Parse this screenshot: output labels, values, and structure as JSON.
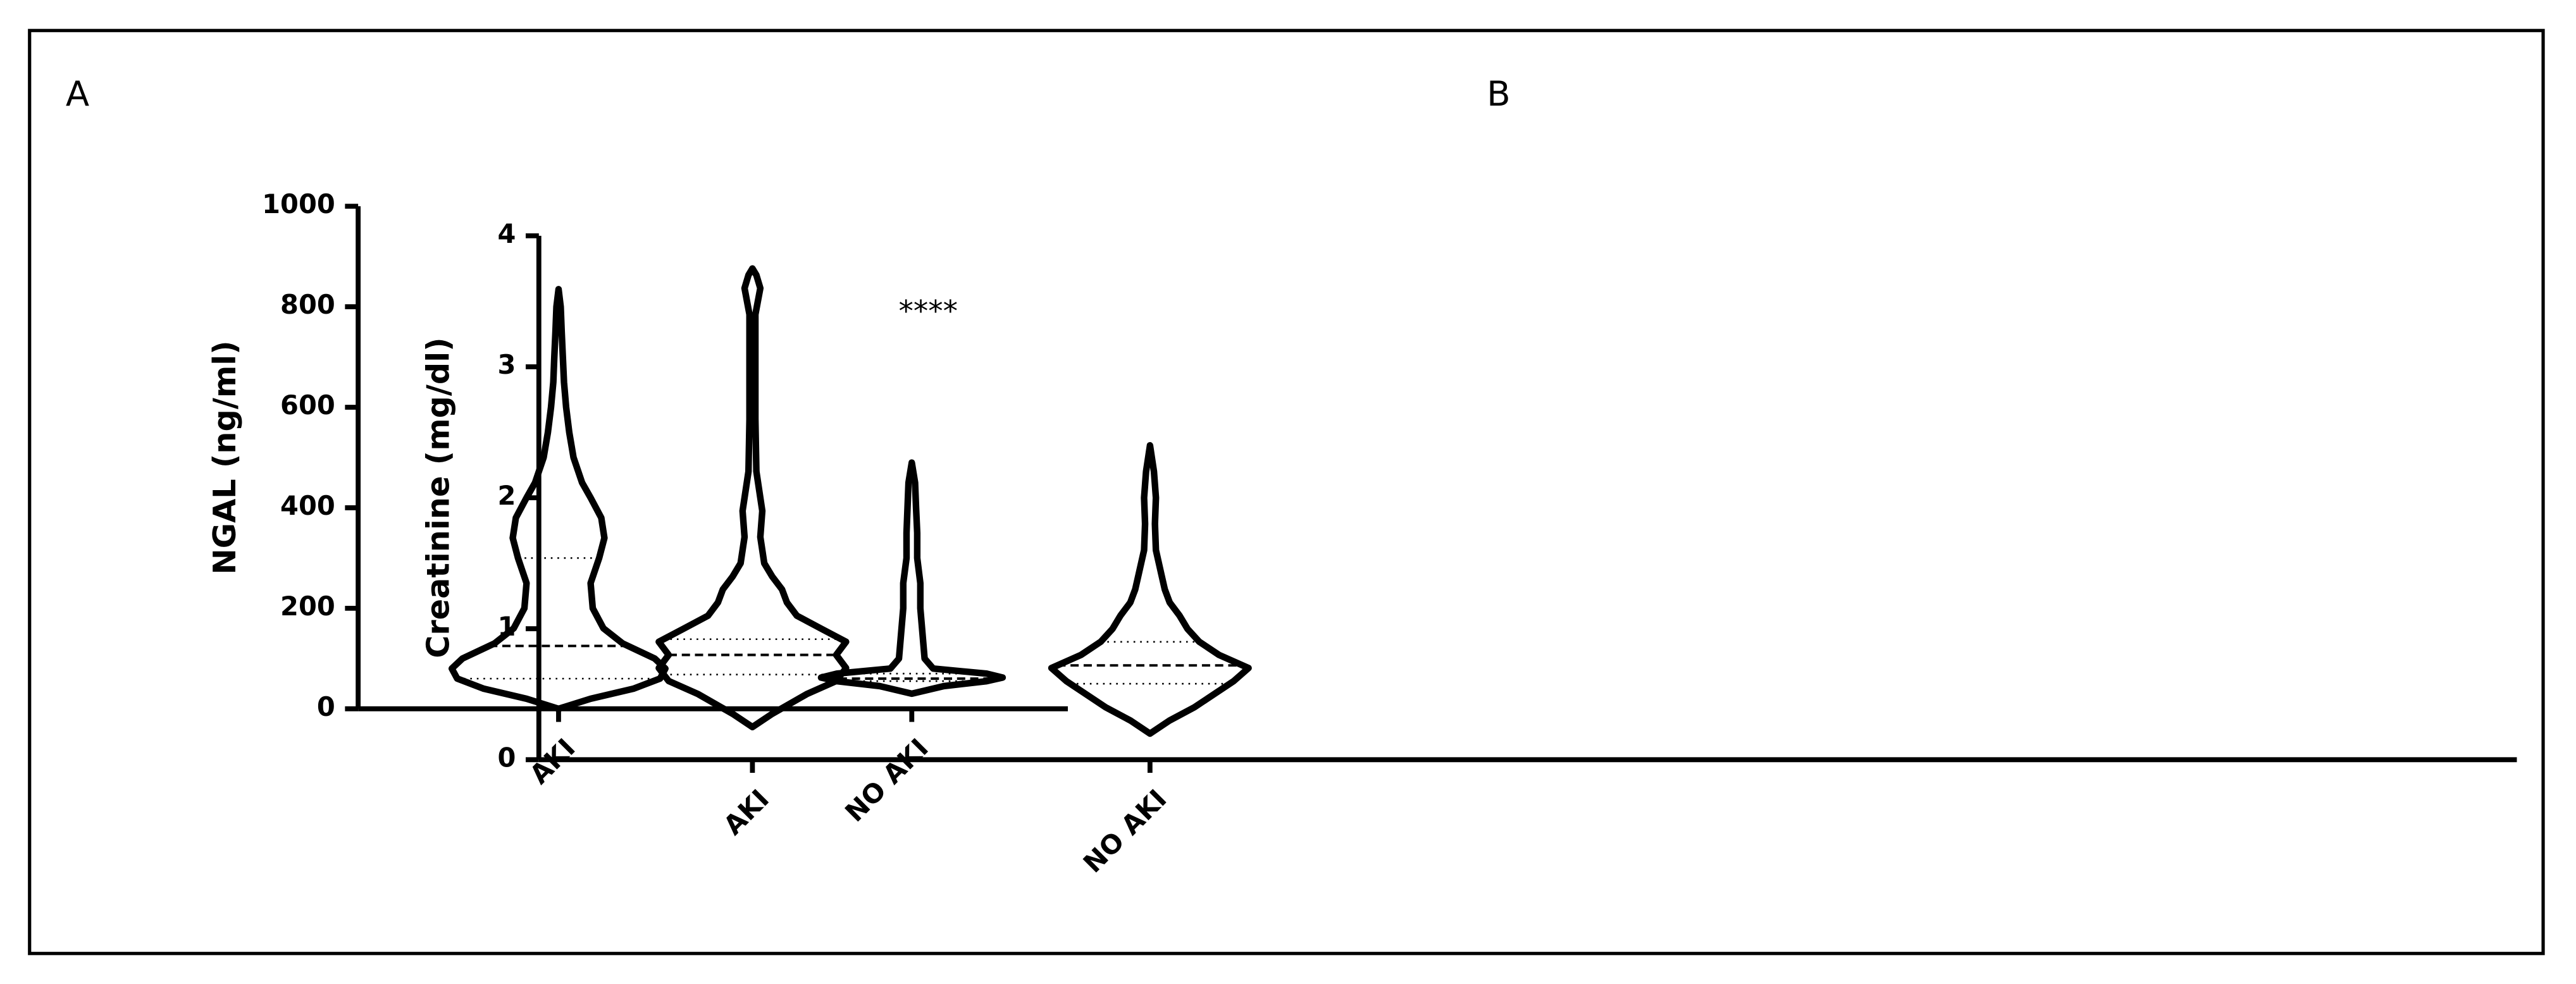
{
  "chart_data": [
    {
      "type": "violin",
      "panel_label": "A",
      "y_label": "NGAL (ng/ml)",
      "annotation": "****",
      "categories": [
        "AKI",
        "NO AKI"
      ],
      "ylim": [
        0,
        1000
      ],
      "yticks": [
        0,
        200,
        400,
        600,
        800,
        1000
      ],
      "violins": [
        {
          "min": 0,
          "q1": 60,
          "median": 125,
          "q3": 300,
          "max": 835,
          "density": {
            "y": [
              0,
              20,
              40,
              60,
              80,
              100,
              130,
              160,
              200,
              250,
              300,
              340,
              380,
              420,
              450,
              500,
              550,
              600,
              650,
              700,
              750,
              800,
              835
            ],
            "width": [
              0,
              0.3,
              0.7,
              0.95,
              1,
              0.9,
              0.6,
              0.42,
              0.32,
              0.3,
              0.38,
              0.43,
              0.4,
              0.3,
              0.22,
              0.14,
              0.1,
              0.07,
              0.05,
              0.04,
              0.03,
              0.02,
              0
            ]
          }
        },
        {
          "min": 30,
          "q1": 55,
          "median": 60,
          "q3": 70,
          "max": 490,
          "density": {
            "y": [
              30,
              45,
              55,
              62,
              70,
              80,
              100,
              150,
              200,
              250,
              300,
              350,
              400,
              450,
              490
            ],
            "width": [
              0,
              0.3,
              0.7,
              0.85,
              0.7,
              0.2,
              0.12,
              0.1,
              0.08,
              0.08,
              0.05,
              0.05,
              0.04,
              0.03,
              0
            ]
          }
        }
      ]
    },
    {
      "type": "violin",
      "panel_label": "B",
      "y_label": "Creatinine (mg/dl)",
      "categories": [
        "AKI",
        "NO AKI"
      ],
      "ylim": [
        0,
        4
      ],
      "yticks": [
        0,
        1,
        2,
        3,
        4
      ],
      "violins": [
        {
          "min": 0.25,
          "q1": 0.65,
          "median": 0.8,
          "q3": 0.92,
          "max": 3.75,
          "density": {
            "y": [
              0.25,
              0.35,
              0.5,
              0.6,
              0.7,
              0.8,
              0.9,
              1,
              1.1,
              1.2,
              1.3,
              1.4,
              1.5,
              1.7,
              1.9,
              2.2,
              2.6,
              3,
              3.4,
              3.6,
              3.7,
              3.75
            ],
            "width": [
              0,
              0.2,
              0.55,
              0.85,
              0.95,
              0.85,
              0.95,
              0.7,
              0.45,
              0.35,
              0.3,
              0.2,
              0.12,
              0.08,
              0.1,
              0.04,
              0.03,
              0.03,
              0.03,
              0.08,
              0.04,
              0
            ]
          }
        },
        {
          "min": 0.2,
          "q1": 0.58,
          "median": 0.72,
          "q3": 0.9,
          "max": 2.4,
          "density": {
            "y": [
              0.2,
              0.3,
              0.4,
              0.5,
              0.6,
              0.7,
              0.8,
              0.9,
              1,
              1.1,
              1.2,
              1.3,
              1.4,
              1.6,
              1.8,
              2,
              2.2,
              2.4
            ],
            "width": [
              0,
              0.2,
              0.45,
              0.65,
              0.85,
              1,
              0.7,
              0.5,
              0.38,
              0.3,
              0.2,
              0.15,
              0.12,
              0.06,
              0.05,
              0.06,
              0.04,
              0
            ]
          }
        }
      ]
    }
  ]
}
